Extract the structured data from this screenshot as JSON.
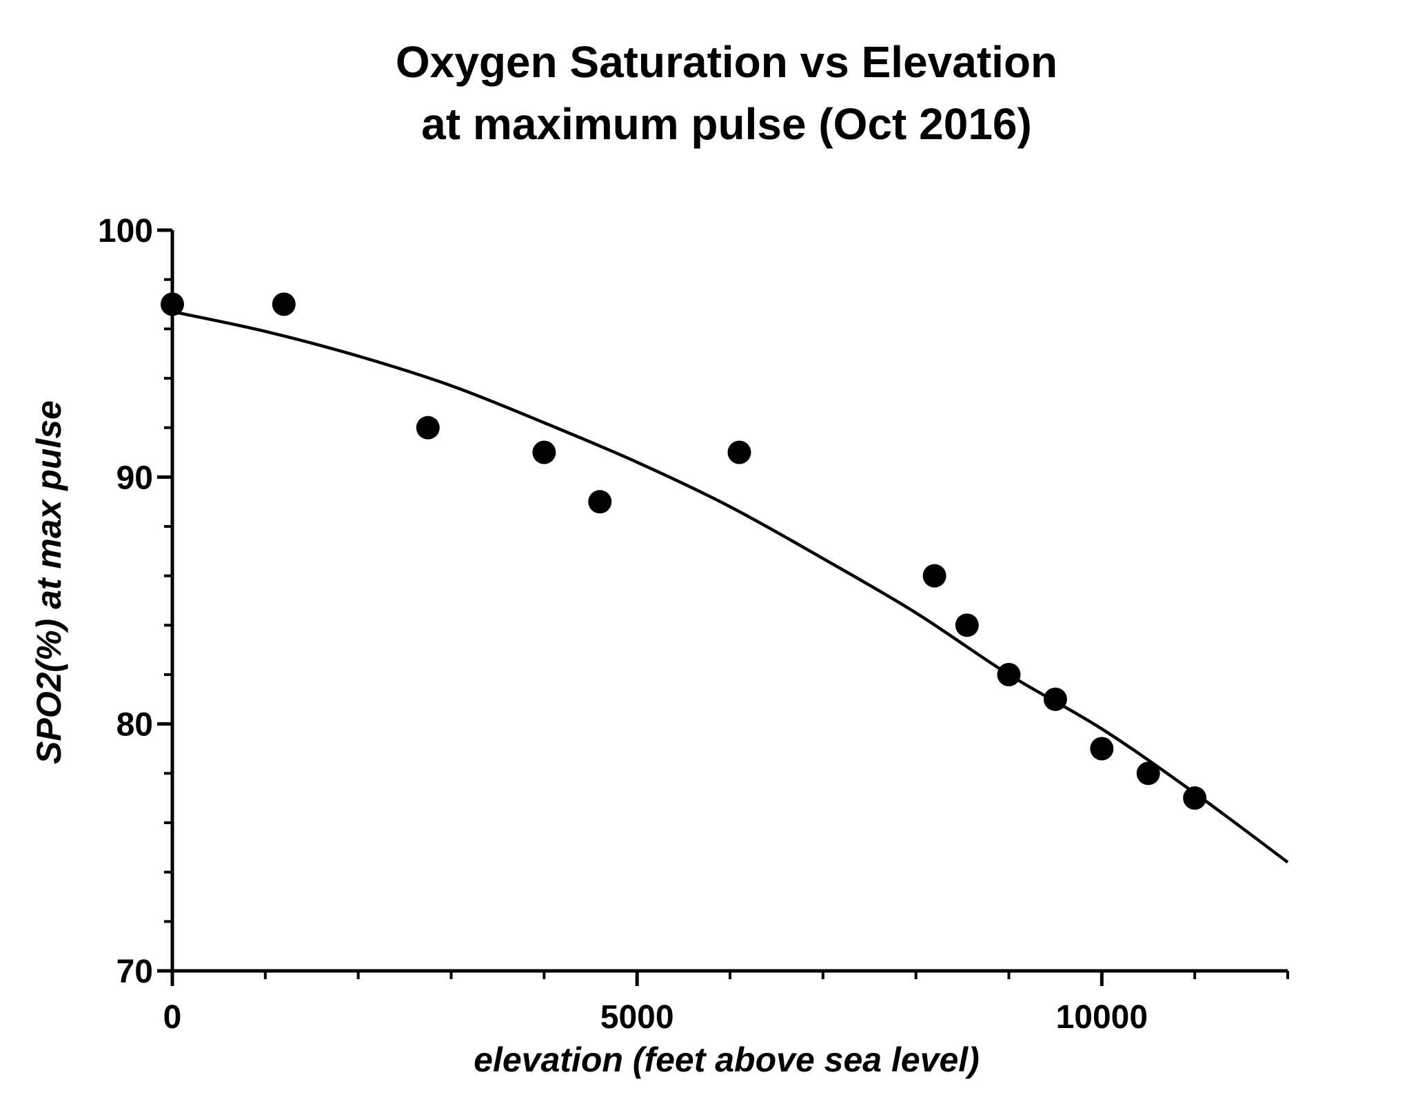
{
  "chart_data": {
    "type": "scatter",
    "title": "Oxygen Saturation vs Elevation",
    "subtitle": "at maximum pulse (Oct 2016)",
    "xlabel": "elevation (feet above sea level)",
    "ylabel": "SPO2(%) at max pulse",
    "xlim": [
      0,
      12000
    ],
    "ylim": [
      70,
      100
    ],
    "x_ticks": [
      0,
      5000,
      10000
    ],
    "y_ticks": [
      70,
      80,
      90,
      100
    ],
    "x_minor_step": 1000,
    "y_minor_step": 2,
    "grid": false,
    "colors": {
      "points": "#000000",
      "fit_line": "#000000",
      "axes": "#000000"
    },
    "series": [
      {
        "type": "scatter",
        "points": [
          {
            "x": 0,
            "y": 97
          },
          {
            "x": 1200,
            "y": 97
          },
          {
            "x": 2750,
            "y": 92
          },
          {
            "x": 4000,
            "y": 91
          },
          {
            "x": 4600,
            "y": 89
          },
          {
            "x": 6100,
            "y": 91
          },
          {
            "x": 8200,
            "y": 86
          },
          {
            "x": 8550,
            "y": 84
          },
          {
            "x": 9000,
            "y": 82
          },
          {
            "x": 9500,
            "y": 81
          },
          {
            "x": 10000,
            "y": 79
          },
          {
            "x": 10500,
            "y": 78
          },
          {
            "x": 11000,
            "y": 77
          }
        ]
      },
      {
        "type": "line",
        "points": [
          {
            "x": 0,
            "y": 96.7
          },
          {
            "x": 1000,
            "y": 95.9
          },
          {
            "x": 2000,
            "y": 94.9
          },
          {
            "x": 3000,
            "y": 93.7
          },
          {
            "x": 4000,
            "y": 92.2
          },
          {
            "x": 5000,
            "y": 90.6
          },
          {
            "x": 6000,
            "y": 88.8
          },
          {
            "x": 7000,
            "y": 86.7
          },
          {
            "x": 8000,
            "y": 84.5
          },
          {
            "x": 9000,
            "y": 82.0
          },
          {
            "x": 10000,
            "y": 79.8
          },
          {
            "x": 11000,
            "y": 77.2
          },
          {
            "x": 12000,
            "y": 74.4
          }
        ]
      }
    ]
  }
}
